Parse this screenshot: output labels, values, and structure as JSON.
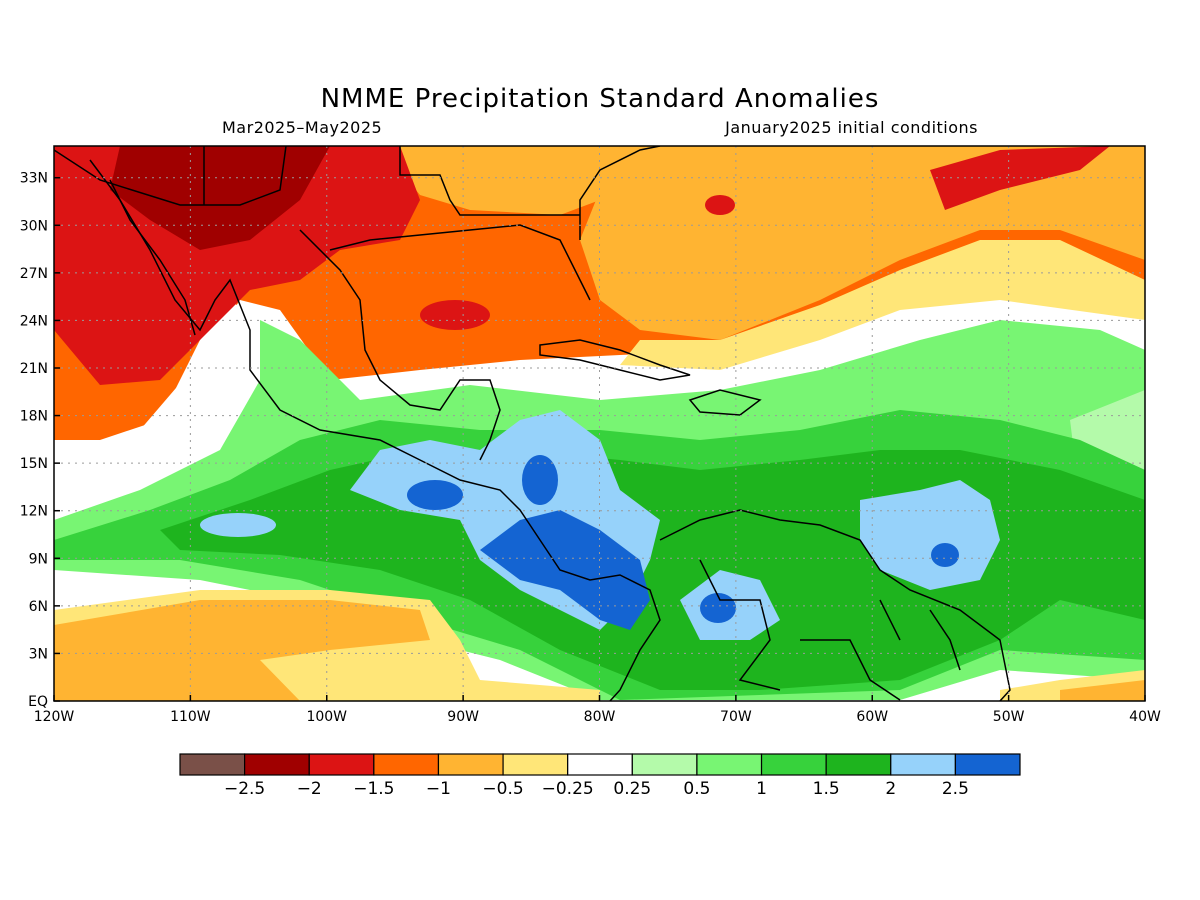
{
  "title": "NMME Precipitation Standard Anomalies",
  "period": "Mar2025–May2025",
  "initial_conditions": "January2025 initial conditions",
  "axes": {
    "lon": {
      "range": [
        -120,
        -40
      ],
      "ticks": [
        -120,
        -110,
        -100,
        -90,
        -80,
        -70,
        -60,
        -50,
        -40
      ],
      "labels": [
        "120W",
        "110W",
        "100W",
        "90W",
        "80W",
        "70W",
        "60W",
        "50W",
        "40W"
      ]
    },
    "lat": {
      "range": [
        0,
        35
      ],
      "ticks": [
        0,
        3,
        6,
        9,
        12,
        15,
        18,
        21,
        24,
        27,
        30,
        33
      ],
      "labels": [
        "EQ",
        "3N",
        "6N",
        "9N",
        "12N",
        "15N",
        "18N",
        "21N",
        "24N",
        "27N",
        "30N",
        "33N"
      ]
    }
  },
  "colorbar": {
    "colors": [
      "#7a5048",
      "#a00000",
      "#dc1414",
      "#ff6600",
      "#ffb432",
      "#ffe678",
      "#ffffff",
      "#b4faaa",
      "#78f573",
      "#37d23c",
      "#1eb41e",
      "#96d2fa",
      "#1464d2"
    ],
    "labels": [
      "−2.5",
      "−2",
      "−1.5",
      "−1",
      "−0.5",
      "−0.25",
      "0.25",
      "0.5",
      "1",
      "1.5",
      "2",
      "2.5"
    ]
  },
  "anomaly_regions": [
    {
      "id": "base-orange-north",
      "class": -1
    },
    {
      "id": "yellow-gulf",
      "class": -0.5
    },
    {
      "id": "red-mexico",
      "class": -1.5
    },
    {
      "id": "darkred-sonora",
      "class": -2
    },
    {
      "id": "red-gulf-spot",
      "class": -1.5
    },
    {
      "id": "red-atlantic",
      "class": -1.5
    },
    {
      "id": "white-band-caribbean",
      "class": 0
    },
    {
      "id": "green-caribbean",
      "class": 1
    },
    {
      "id": "green-atlantic",
      "class": 1
    },
    {
      "id": "green-pacific",
      "class": 1
    },
    {
      "id": "blue-central-america",
      "class": 2.5
    },
    {
      "id": "blue-atlantic",
      "class": 2.5
    },
    {
      "id": "yellow-south-pacific",
      "class": -0.5
    }
  ]
}
